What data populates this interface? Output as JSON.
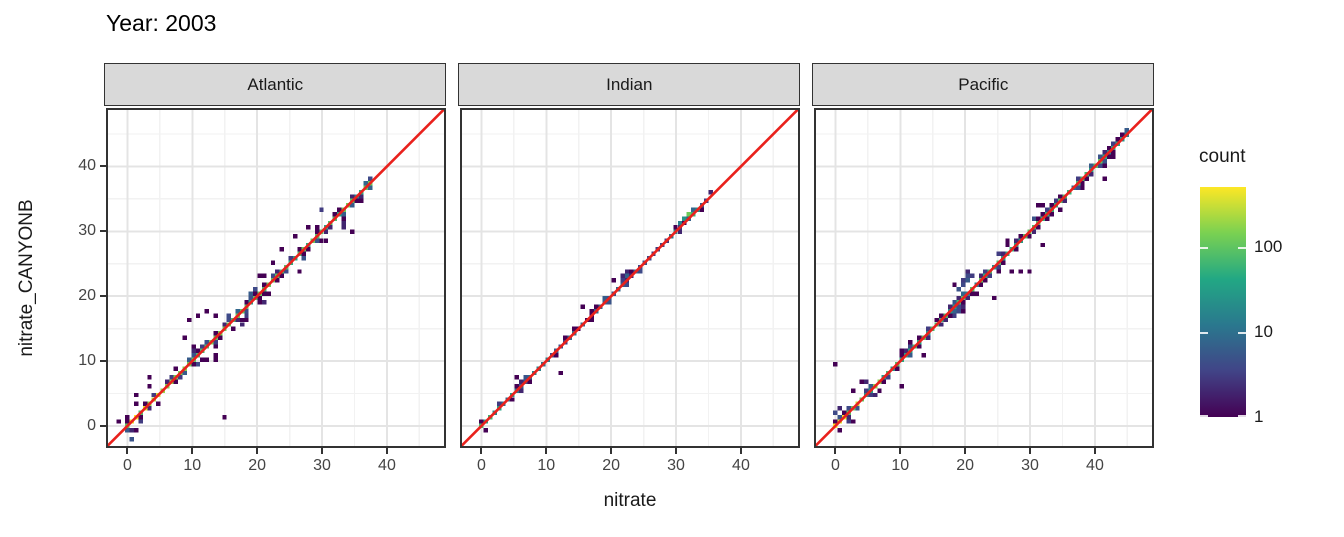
{
  "title": "Year: 2003",
  "axes": {
    "x_label": "nitrate",
    "y_label": "nitrate_CANYONB",
    "x_tick_labels": [
      "0",
      "10",
      "20",
      "30",
      "40"
    ],
    "y_tick_labels": [
      "0",
      "10",
      "20",
      "30",
      "40"
    ]
  },
  "facets": [
    "Atlantic",
    "Indian",
    "Pacific"
  ],
  "legend": {
    "title": "count",
    "labels": [
      "100",
      "10",
      "1"
    ],
    "values": [
      100,
      10,
      1
    ]
  },
  "colors": {
    "identity_line": "#e9211c",
    "panel_border": "#333333",
    "strip_fill": "#d9d9d9",
    "grid_major": "#e4e4e4",
    "grid_minor": "#f2f2f2",
    "tick_text": "#444444"
  },
  "chart_data": {
    "type": "heatmap",
    "subtype": "2d-binned scatter (stat_bin2d) of predicted vs observed nitrate, faceted by ocean",
    "title": "Year: 2003",
    "xlabel": "nitrate",
    "ylabel": "nitrate_CANYONB",
    "facets": [
      "Atlantic",
      "Indian",
      "Pacific"
    ],
    "x_range": [
      -3.3,
      49.1
    ],
    "y_range": [
      -3.4,
      49.0
    ],
    "x_ticks": [
      0,
      10,
      20,
      30,
      40
    ],
    "y_ticks": [
      0,
      10,
      20,
      30,
      40
    ],
    "minor_ticks": [
      5,
      15,
      25,
      35,
      45
    ],
    "grid": true,
    "binwidth": 0.68,
    "identity_line": {
      "slope": 1,
      "intercept": 0,
      "color": "#e9211c"
    },
    "legend": {
      "title": "count",
      "scale": "log10",
      "position": "right",
      "tick_values": [
        1,
        10,
        100
      ],
      "max_count": 500,
      "viridis_stops": [
        "#440154",
        "#414487",
        "#2A788E",
        "#22A884",
        "#7AD151",
        "#FDE725"
      ]
    },
    "panels": [
      {
        "name": "Atlantic",
        "seed": 7,
        "diag_max": 37.4,
        "peak": 430,
        "decay": 3.0,
        "mid": 55,
        "sigma": 1.05,
        "p0": 1.25,
        "wide": 20,
        "outliers": [
          {
            "x": 15,
            "y": 1.6,
            "c": 1
          },
          {
            "x": 9.5,
            "y": 16.4,
            "c": 1
          },
          {
            "x": 11,
            "y": 17.3,
            "c": 1
          },
          {
            "x": 12,
            "y": 18,
            "c": 1
          },
          {
            "x": 8.8,
            "y": 13.6,
            "c": 1
          },
          {
            "x": 13.6,
            "y": 10.2,
            "c": 1
          }
        ]
      },
      {
        "name": "Indian",
        "seed": 13,
        "diag_max": 34,
        "peak": 45,
        "decay": 4.0,
        "mid": 3.2,
        "sigma": 0.45,
        "p0": 0.8,
        "wide": 4,
        "outliers": [
          {
            "x": 12,
            "y": 8,
            "c": 1
          },
          {
            "x": 29.3,
            "y": 29.3,
            "c": 12
          },
          {
            "x": 30,
            "y": 30.2,
            "c": 18
          },
          {
            "x": 30.7,
            "y": 31.3,
            "c": 15
          },
          {
            "x": 31.3,
            "y": 31.9,
            "c": 25
          },
          {
            "x": 32,
            "y": 32.6,
            "c": 120
          },
          {
            "x": 32.7,
            "y": 32.7,
            "c": 60
          },
          {
            "x": 33.3,
            "y": 33.3,
            "c": 20
          },
          {
            "x": 34,
            "y": 34.2,
            "c": 6
          },
          {
            "x": 34.7,
            "y": 35,
            "c": 3
          },
          {
            "x": 35.4,
            "y": 35.8,
            "c": 2
          },
          {
            "x": 21.8,
            "y": 23,
            "c": 2
          },
          {
            "x": 22.4,
            "y": 23.7,
            "c": 2
          },
          {
            "x": 23,
            "y": 23.7,
            "c": 1
          },
          {
            "x": 21.8,
            "y": 22.4,
            "c": 3
          }
        ]
      },
      {
        "name": "Pacific",
        "seed": 5,
        "diag_max": 45.2,
        "peak": 320,
        "decay": 2.8,
        "mid": 42,
        "sigma": 0.85,
        "p0": 1.15,
        "wide": 16,
        "outliers": [
          {
            "x": 0.2,
            "y": 9.4,
            "c": 1
          },
          {
            "x": 24.7,
            "y": 20,
            "c": 1
          },
          {
            "x": 28.4,
            "y": 24,
            "c": 1
          },
          {
            "x": 29.6,
            "y": 24,
            "c": 1
          },
          {
            "x": 32,
            "y": 27.6,
            "c": 1
          },
          {
            "x": 19.7,
            "y": 21.9,
            "c": 4
          },
          {
            "x": 20.4,
            "y": 22.6,
            "c": 6
          },
          {
            "x": 20.4,
            "y": 23.3,
            "c": 4
          },
          {
            "x": 19.7,
            "y": 22.6,
            "c": 3
          },
          {
            "x": 21,
            "y": 23.3,
            "c": 3
          },
          {
            "x": 20.4,
            "y": 24,
            "c": 2
          },
          {
            "x": 19,
            "y": 21.2,
            "c": 5
          },
          {
            "x": 2,
            "y": 0.7,
            "c": 3
          },
          {
            "x": 2.7,
            "y": 0.7,
            "c": 1
          },
          {
            "x": 0,
            "y": 2,
            "c": 4
          },
          {
            "x": 0.7,
            "y": 2.7,
            "c": 2
          }
        ]
      }
    ]
  }
}
